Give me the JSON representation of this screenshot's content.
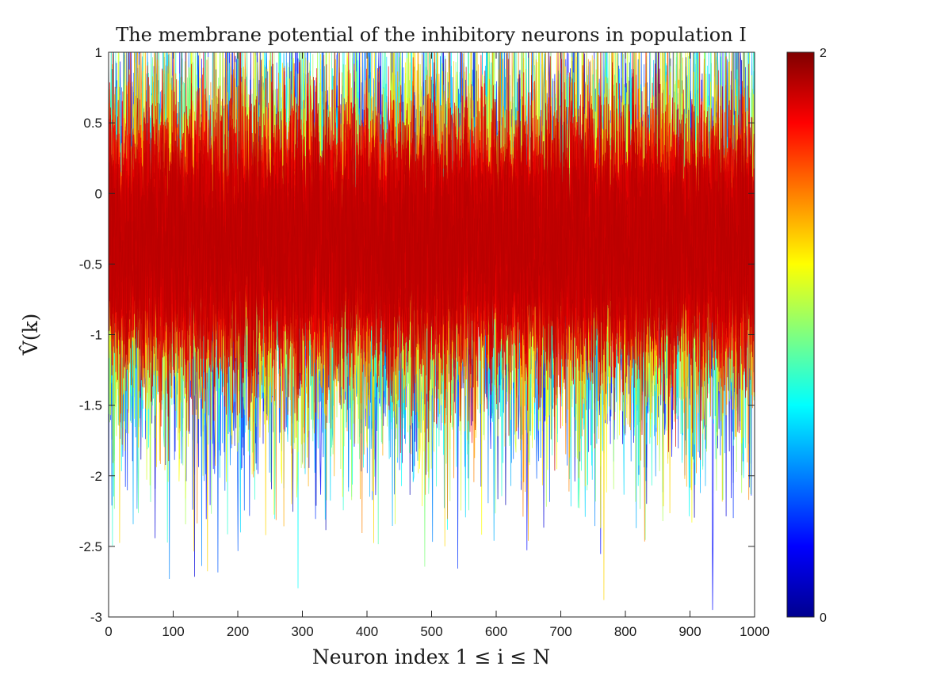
{
  "chart_data": {
    "type": "line",
    "title": "The membrane potential of the inhibitory neurons in population I",
    "xlabel": "Neuron index 1 ≤ i ≤ N",
    "ylabel": "V̂(k)",
    "xlim": [
      0,
      1000
    ],
    "ylim": [
      -3,
      1
    ],
    "xticks": [
      "0",
      "100",
      "200",
      "300",
      "400",
      "500",
      "600",
      "700",
      "800",
      "900",
      "1000"
    ],
    "yticks": [
      "1",
      "0.5",
      "0",
      "-0.5",
      "-1",
      "-1.5",
      "-2",
      "-2.5",
      "-3"
    ],
    "grid": false,
    "colormap": "jet",
    "colorbar": {
      "min": 0,
      "max": 2,
      "min_label": "0",
      "max_label": "2"
    },
    "series_count": 40,
    "x_points": 1000,
    "center_value": -0.35,
    "color_value_range": [
      0,
      2
    ],
    "dominant_color_value": 1.8
  }
}
